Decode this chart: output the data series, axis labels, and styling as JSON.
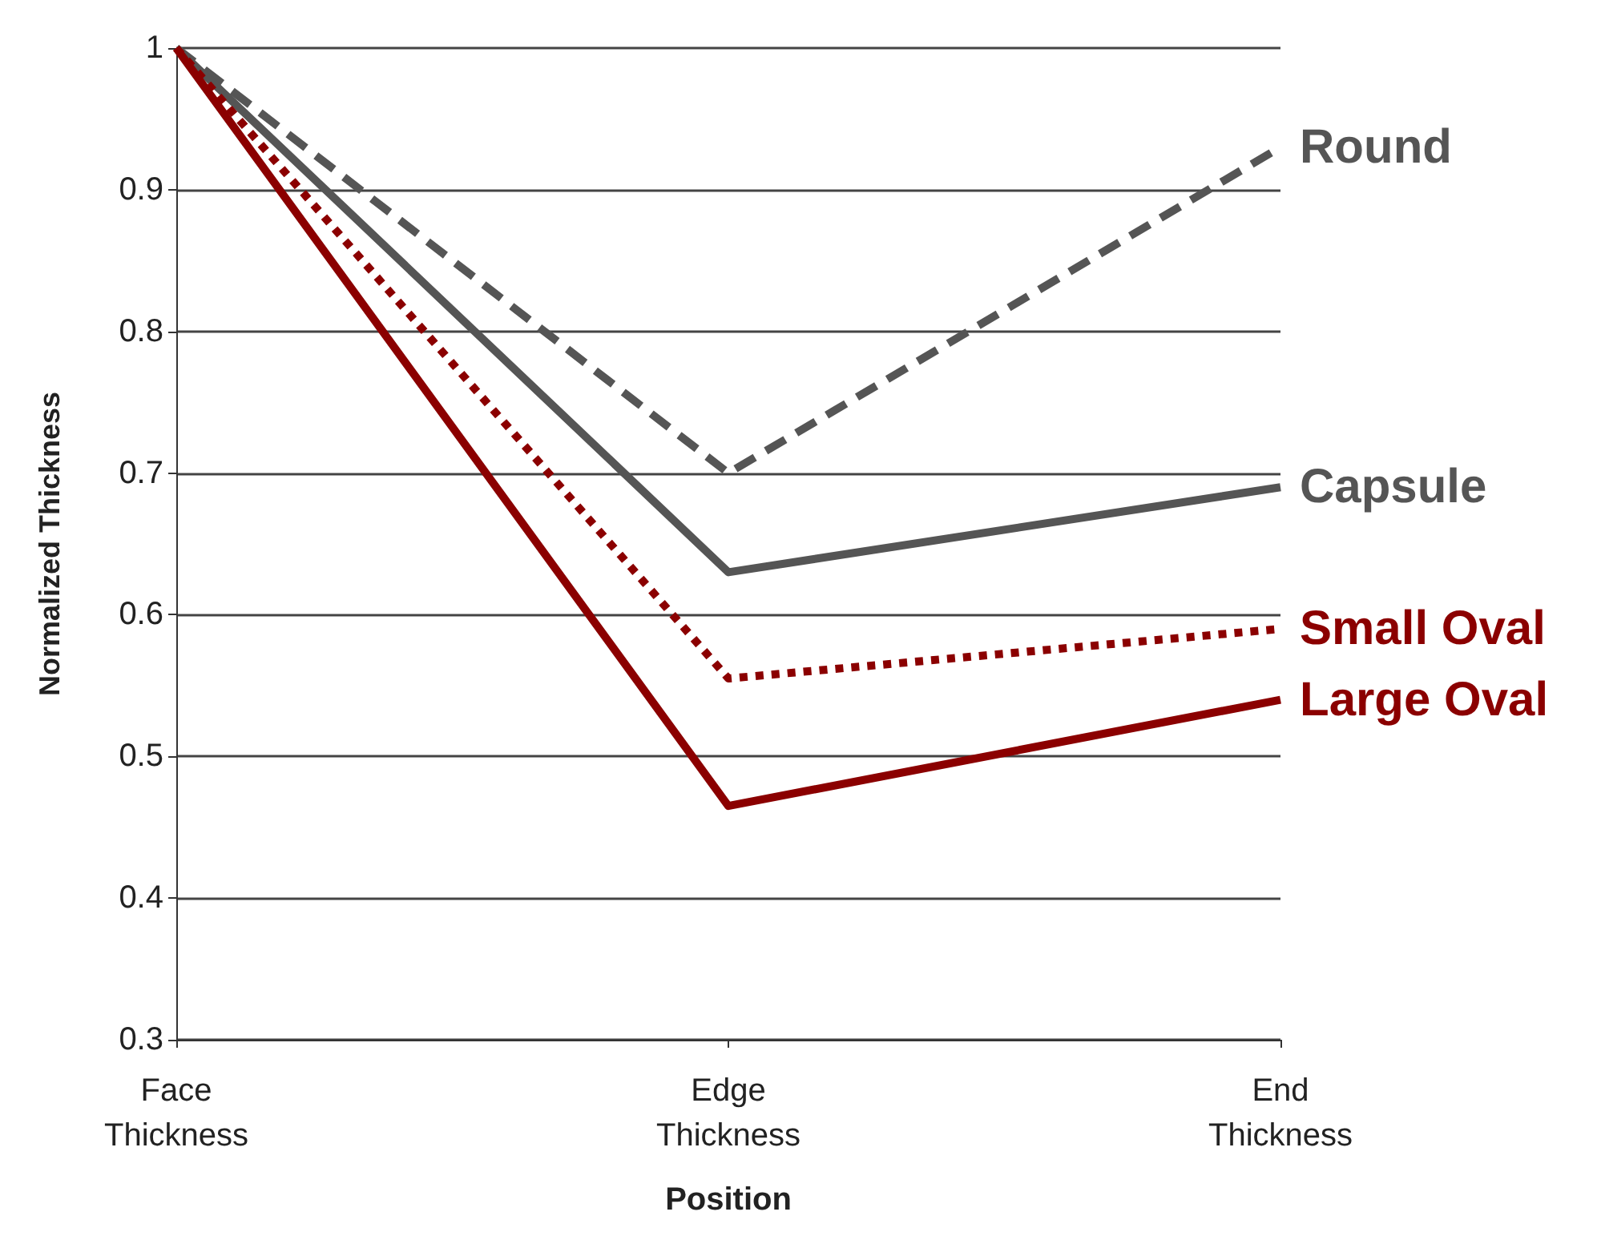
{
  "chart_data": {
    "type": "line",
    "xlabel": "Position",
    "ylabel": "Normalized Thickness",
    "categories": [
      "Face\nThickness",
      "Edge\nThickness",
      "End\nThickness"
    ],
    "series": [
      {
        "name": "Round",
        "color": "#555555",
        "values": [
          1,
          0.7,
          0.93
        ],
        "line_style": "dashed"
      },
      {
        "name": "Capsule",
        "color": "#555555",
        "values": [
          1,
          0.63,
          0.69
        ],
        "line_style": "solid"
      },
      {
        "name": "Small Oval",
        "color": "#8b0000",
        "values": [
          1,
          0.555,
          0.59
        ],
        "line_style": "dotted"
      },
      {
        "name": "Large Oval",
        "color": "#8b0000",
        "values": [
          1,
          0.465,
          0.54
        ],
        "line_style": "solid"
      }
    ],
    "ylim": [
      0.3,
      1
    ],
    "yticks": [
      0.3,
      0.4,
      0.5,
      0.6,
      0.7,
      0.8,
      0.9,
      1
    ],
    "grid": "y",
    "legend": false
  }
}
